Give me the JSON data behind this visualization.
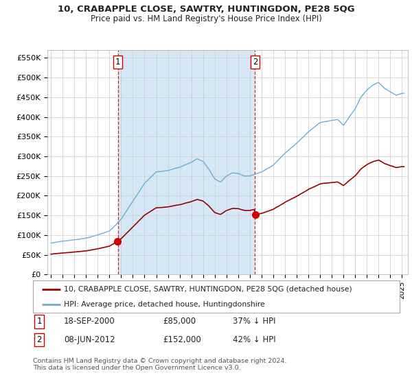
{
  "title": "10, CRABAPPLE CLOSE, SAWTRY, HUNTINGDON, PE28 5QG",
  "subtitle": "Price paid vs. HM Land Registry's House Price Index (HPI)",
  "ylim": [
    0,
    570000
  ],
  "yticks": [
    0,
    50000,
    100000,
    150000,
    200000,
    250000,
    300000,
    350000,
    400000,
    450000,
    500000,
    550000
  ],
  "ytick_labels": [
    "£0",
    "£50K",
    "£100K",
    "£150K",
    "£200K",
    "£250K",
    "£300K",
    "£350K",
    "£400K",
    "£450K",
    "£500K",
    "£550K"
  ],
  "hpi_color": "#6baed6",
  "hpi_fill_color": "#d6e8f5",
  "price_color": "#990000",
  "vline_color": "#cc0000",
  "sale1_year": 2000.72,
  "sale1_price": 85000,
  "sale2_year": 2012.44,
  "sale2_price": 152000,
  "legend_line1": "10, CRABAPPLE CLOSE, SAWTRY, HUNTINGDON, PE28 5QG (detached house)",
  "legend_line2": "HPI: Average price, detached house, Huntingdonshire",
  "annotation1_date": "18-SEP-2000",
  "annotation1_price": "£85,000",
  "annotation1_pct": "37% ↓ HPI",
  "annotation2_date": "08-JUN-2012",
  "annotation2_price": "£152,000",
  "annotation2_pct": "42% ↓ HPI",
  "footer": "Contains HM Land Registry data © Crown copyright and database right 2024.\nThis data is licensed under the Open Government Licence v3.0.",
  "background_color": "#ffffff",
  "grid_color": "#cccccc"
}
